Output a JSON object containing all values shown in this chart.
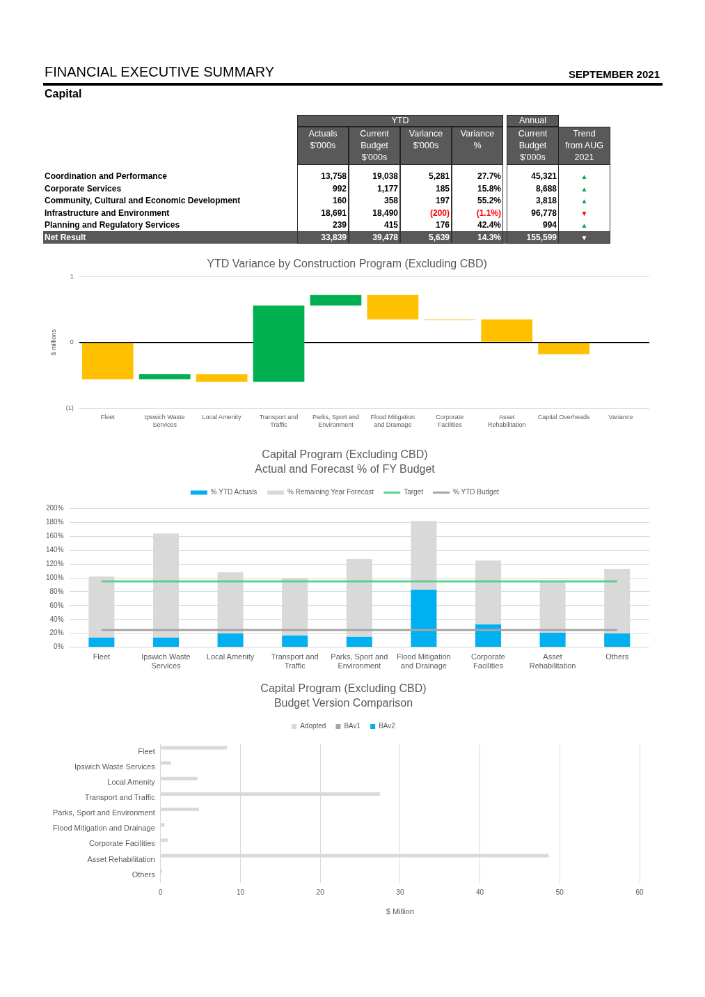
{
  "chart_data": [
    {
      "type": "other",
      "title": "FINANCIAL EXECUTIVE SUMMARY",
      "subtitle": "Capital",
      "annotations": [
        "SEPTEMBER 2021",
        "YTD",
        "Annual"
      ],
      "categories": [
        "Coordination and Performance",
        "Corporate Services",
        "Community, Cultural and Economic Development",
        "Infrastructure and Environment",
        "Planning and Regulatory Services",
        "Net Result"
      ],
      "series": [
        {
          "name": "Actuals $'000s",
          "values": [
            13758,
            992,
            160,
            18691,
            239,
            33839
          ],
          "value_labels": [
            "13,758",
            "992",
            "160",
            "18,691",
            "239",
            "33,839"
          ]
        },
        {
          "name": "Current Budget $'000s",
          "values": [
            19038,
            1177,
            358,
            18490,
            415,
            39478
          ],
          "value_labels": [
            "19,038",
            "1,177",
            "358",
            "18,490",
            "415",
            "39,478"
          ]
        },
        {
          "name": "Variance $'000s",
          "values": [
            5281,
            185,
            197,
            -200,
            176,
            5639
          ],
          "value_labels": [
            "5,281",
            "185",
            "197",
            "(200)",
            "176",
            "5,639"
          ]
        },
        {
          "name": "Variance %",
          "values": [
            27.7,
            15.8,
            55.2,
            -1.1,
            42.4,
            14.3
          ],
          "value_labels": [
            "27.7%",
            "15.8%",
            "55.2%",
            "(1.1%)",
            "42.4%",
            "14.3%"
          ]
        },
        {
          "name": "Current Budget $'000s",
          "values": [
            45321,
            8688,
            3818,
            96778,
            994,
            155599
          ],
          "value_labels": [
            "45,321",
            "8,688",
            "3,818",
            "96,778",
            "994",
            "155,599"
          ]
        },
        {
          "name": "Trend from AUG 2021",
          "values": [
            null,
            null,
            null,
            null,
            null,
            null
          ],
          "value_labels": [
            "▲",
            "▲",
            "▲",
            "▼",
            "▲",
            "▼"
          ],
          "colors": [
            "#00a650",
            "#00a650",
            "#00a650",
            "#ff0000",
            "#00a650",
            "#ffffff"
          ]
        }
      ]
    },
    {
      "type": "bar",
      "title": "YTD Variance by Construction Program (Excluding CBD)",
      "ylabel": "$ millions",
      "categories": [
        "Fleet",
        "Ipswich Waste Services",
        "Local Amenity",
        "Transport and Traffic",
        "Parks, Sport and Environment",
        "Flood Mitigation and Drainage",
        "Corporate Facilities",
        "Asset Rehabilitation",
        "Capital Overheads",
        "Variance"
      ],
      "values": [
        -0.56,
        0.08,
        -0.12,
        1.16,
        0.16,
        -0.37,
        0,
        -0.35,
        -0.18,
        null
      ],
      "base": [
        0,
        -0.56,
        -0.48,
        -0.6,
        0.56,
        0.72,
        0.35,
        0.35,
        0,
        null
      ],
      "colors": [
        "#ffc000",
        "#00b050",
        "#ffc000",
        "#00b050",
        "#00b050",
        "#ffc000",
        "#ffc000",
        "#ffc000",
        "#ffc000",
        "#ffc000"
      ],
      "ylim": [
        -1,
        1
      ],
      "yticks": [
        {
          "value": -1,
          "label": "(1)"
        },
        0,
        1
      ],
      "grid": "y"
    },
    {
      "type": "bar",
      "title": "Capital Program (Excluding CBD)",
      "subtitle": "Actual and Forecast % of FY Budget",
      "stacked": true,
      "categories": [
        "Fleet",
        "Ipswich Waste Services",
        "Local Amenity",
        "Transport and Traffic",
        "Parks, Sport and Environment",
        "Flood Mitigation and Drainage",
        "Corporate Facilities",
        "Asset Rehabilitation",
        "Others"
      ],
      "series": [
        {
          "name": "% YTD Actuals",
          "color": "#00b0f0",
          "values": [
            14,
            14,
            20,
            17,
            15,
            83,
            33,
            21,
            20
          ]
        },
        {
          "name": "% Remaining Year Forecast",
          "color": "#d9d9d9",
          "values": [
            88,
            150,
            88,
            83,
            112,
            99,
            92,
            73,
            93
          ]
        },
        {
          "name": "Target",
          "type": "line",
          "color": "#5fcf8f",
          "values": [
            95,
            95,
            95,
            95,
            95,
            95,
            95,
            95,
            95
          ]
        },
        {
          "name": "% YTD Budget",
          "type": "line",
          "color": "#a6a6a6",
          "values": [
            25,
            25,
            25,
            25,
            25,
            25,
            25,
            25,
            25
          ]
        }
      ],
      "ylim": [
        0,
        200
      ],
      "yticks": [
        {
          "value": 0,
          "label": "0%"
        },
        {
          "value": 20,
          "label": "20%"
        },
        {
          "value": 40,
          "label": "40%"
        },
        {
          "value": 60,
          "label": "60%"
        },
        {
          "value": 80,
          "label": "80%"
        },
        {
          "value": 100,
          "label": "100%"
        },
        {
          "value": 120,
          "label": "120%"
        },
        {
          "value": 140,
          "label": "140%"
        },
        {
          "value": 160,
          "label": "160%"
        },
        {
          "value": 180,
          "label": "180%"
        },
        {
          "value": 200,
          "label": "200%"
        }
      ],
      "grid": "y",
      "legend": "top",
      "marker": "none"
    },
    {
      "type": "bar",
      "orientation": "horizontal",
      "title": "Capital Program (Excluding CBD)",
      "subtitle": "Budget Version Comparison",
      "xlabel": "$ Million",
      "categories": [
        "Fleet",
        "Ipswich Waste Services",
        "Local Amenity",
        "Transport and Traffic",
        "Parks, Sport and Environment",
        "Flood Mitigation and Drainage",
        "Corporate Facilities",
        "Asset Rehabilitation",
        "Others"
      ],
      "series": [
        {
          "name": "Adopted",
          "color": "#d9d9d9",
          "values": [
            8.3,
            1.3,
            4.6,
            27.5,
            4.8,
            0.5,
            0.9,
            48.6,
            0.2
          ]
        },
        {
          "name": "BAv1",
          "color": "#a6a6a6",
          "values": [
            null,
            null,
            null,
            null,
            null,
            null,
            null,
            null,
            null
          ]
        },
        {
          "name": "BAv2",
          "color": "#00b0f0",
          "values": [
            null,
            null,
            null,
            null,
            null,
            null,
            null,
            null,
            null
          ]
        }
      ],
      "xlim": [
        0,
        60
      ],
      "xticks": [
        0,
        10,
        20,
        30,
        40,
        50,
        60
      ],
      "grid": "x",
      "legend": "top"
    }
  ]
}
